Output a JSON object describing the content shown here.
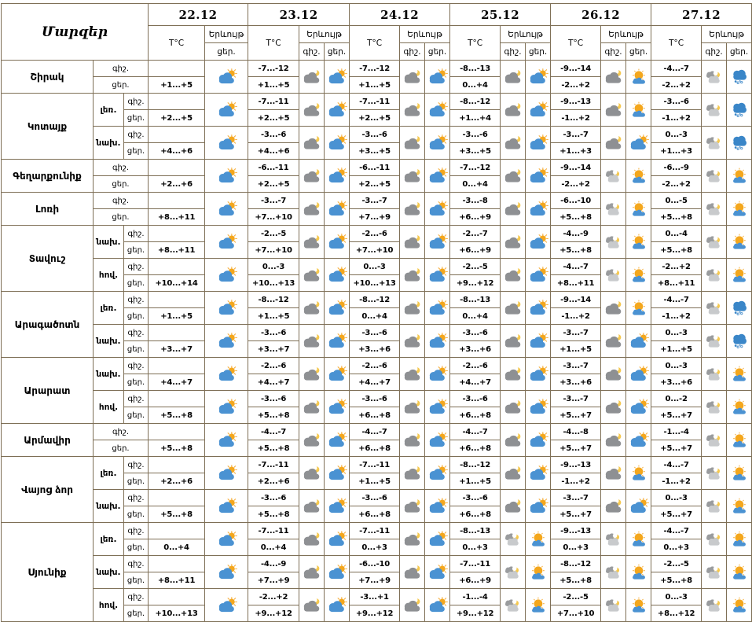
{
  "table": {
    "title": "Մարզեր",
    "dates": [
      "22.12",
      "23.12",
      "24.12",
      "25.12",
      "26.12",
      "27.12"
    ],
    "temp_label": "T°C",
    "phenomenon_label": "Երևույթ",
    "night_label": "գիշ.",
    "day_label": "ցեր."
  },
  "icons_legend": {
    "sun-cloud": "partly cloudy day",
    "moon-cloud": "cloudy night",
    "moon-clouds": "partly cloudy night",
    "sun-low-cloud": "mostly sunny with low cloud",
    "snow": "snow cloud"
  },
  "colors": {
    "border": "#7e6f56",
    "sun": "#f4a71d",
    "sun_rays": "#f6b44a",
    "cloud_blue": "#4a92d2",
    "snow_cloud_blue": "#3a86c8",
    "cloud_gray": "#8e9093",
    "cloud_light_gray": "#c8cacc",
    "moon_gold": "#f5c84e"
  },
  "regions": [
    {
      "name": "Շիրակ",
      "zones": [
        {
          "zone": "",
          "night": [
            "",
            "-7...-12",
            "-7...-12",
            "-8...-13",
            "-9...-14",
            "-4...-7"
          ],
          "day": [
            "+1...+5",
            "+1...+5",
            "+1...+5",
            "0...+4",
            "-2...+2",
            "-2...+2"
          ],
          "night_icons": [
            "",
            "moon-cloud",
            "moon-cloud",
            "moon-cloud",
            "moon-cloud",
            "moon-clouds"
          ],
          "day_icons": [
            "sun-cloud",
            "sun-cloud",
            "sun-cloud",
            "sun-cloud",
            "sun-low-cloud",
            "snow"
          ]
        }
      ]
    },
    {
      "name": "Կոտայք",
      "zones": [
        {
          "zone": "լեռ.",
          "night": [
            "",
            "-7...-11",
            "-7...-11",
            "-8...-12",
            "-9...-13",
            "-3...-6"
          ],
          "day": [
            "+2...+5",
            "+2...+5",
            "+2...+5",
            "+1...+4",
            "-1...+2",
            "-1...+2"
          ],
          "night_icons": [
            "",
            "moon-cloud",
            "moon-cloud",
            "moon-cloud",
            "moon-cloud",
            "moon-clouds"
          ],
          "day_icons": [
            "sun-cloud",
            "sun-cloud",
            "sun-cloud",
            "sun-cloud",
            "sun-low-cloud",
            "snow"
          ]
        },
        {
          "zone": "նախ.",
          "night": [
            "",
            "-3...-6",
            "-3...-6",
            "-3...-6",
            "-3...-7",
            "0...-3"
          ],
          "day": [
            "+4...+6",
            "+4...+6",
            "+3...+5",
            "+3...+5",
            "+1...+3",
            "+1...+3"
          ],
          "night_icons": [
            "",
            "moon-cloud",
            "moon-cloud",
            "moon-cloud",
            "moon-cloud",
            "moon-clouds"
          ],
          "day_icons": [
            "sun-cloud",
            "sun-cloud",
            "sun-cloud",
            "sun-cloud",
            "sun-cloud",
            "snow"
          ]
        }
      ]
    },
    {
      "name": "Գեղարքունիք",
      "zones": [
        {
          "zone": "",
          "night": [
            "",
            "-6...-11",
            "-6...-11",
            "-7...-12",
            "-9...-14",
            "-6...-9"
          ],
          "day": [
            "+2...+6",
            "+2...+5",
            "+2...+5",
            "0...+4",
            "-2...+2",
            "-2...+2"
          ],
          "night_icons": [
            "",
            "moon-cloud",
            "moon-cloud",
            "moon-cloud",
            "moon-clouds",
            "moon-clouds"
          ],
          "day_icons": [
            "sun-cloud",
            "sun-cloud",
            "sun-cloud",
            "sun-cloud",
            "sun-low-cloud",
            "sun-low-cloud"
          ]
        }
      ]
    },
    {
      "name": "Լոռի",
      "zones": [
        {
          "zone": "",
          "night": [
            "",
            "-3...-7",
            "-3...-7",
            "-3...-8",
            "-6...-10",
            "0...-5"
          ],
          "day": [
            "+8...+11",
            "+7...+10",
            "+7...+9",
            "+6...+9",
            "+5...+8",
            "+5...+8"
          ],
          "night_icons": [
            "",
            "moon-cloud",
            "moon-cloud",
            "moon-cloud",
            "moon-clouds",
            "moon-clouds"
          ],
          "day_icons": [
            "sun-cloud",
            "sun-cloud",
            "sun-cloud",
            "sun-cloud",
            "sun-low-cloud",
            "sun-low-cloud"
          ]
        }
      ]
    },
    {
      "name": "Տավուշ",
      "zones": [
        {
          "zone": "նախ.",
          "night": [
            "",
            "-2...-5",
            "-2...-6",
            "-2...-7",
            "-4...-9",
            "0...-4"
          ],
          "day": [
            "+8...+11",
            "+7...+10",
            "+7...+10",
            "+6...+9",
            "+5...+8",
            "+5...+8"
          ],
          "night_icons": [
            "",
            "moon-cloud",
            "moon-cloud",
            "moon-cloud",
            "moon-clouds",
            "moon-clouds"
          ],
          "day_icons": [
            "sun-cloud",
            "sun-cloud",
            "sun-cloud",
            "sun-cloud",
            "sun-low-cloud",
            "sun-low-cloud"
          ]
        },
        {
          "zone": "հով.",
          "night": [
            "",
            "0...-3",
            "0...-3",
            "-2...-5",
            "-4...-7",
            "-2...+2"
          ],
          "day": [
            "+10...+14",
            "+10...+13",
            "+10...+13",
            "+9...+12",
            "+8...+11",
            "+8...+11"
          ],
          "night_icons": [
            "",
            "moon-cloud",
            "moon-cloud",
            "moon-cloud",
            "moon-clouds",
            "moon-clouds"
          ],
          "day_icons": [
            "sun-cloud",
            "sun-cloud",
            "sun-cloud",
            "sun-cloud",
            "sun-low-cloud",
            "sun-low-cloud"
          ]
        }
      ]
    },
    {
      "name": "Արագածոտն",
      "zones": [
        {
          "zone": "լեռ.",
          "night": [
            "",
            "-8...-12",
            "-8...-12",
            "-8...-13",
            "-9...-14",
            "-4...-7"
          ],
          "day": [
            "+1...+5",
            "+1...+5",
            "0...+4",
            "0...+4",
            "-1...+2",
            "-1...+2"
          ],
          "night_icons": [
            "",
            "moon-cloud",
            "moon-cloud",
            "moon-cloud",
            "moon-cloud",
            "moon-clouds"
          ],
          "day_icons": [
            "sun-cloud",
            "sun-cloud",
            "sun-cloud",
            "sun-cloud",
            "sun-low-cloud",
            "snow"
          ]
        },
        {
          "zone": "նախ.",
          "night": [
            "",
            "-3...-6",
            "-3...-6",
            "-3...-6",
            "-3...-7",
            "0...-3"
          ],
          "day": [
            "+3...+7",
            "+3...+7",
            "+3...+6",
            "+3...+6",
            "+1...+5",
            "+1...+5"
          ],
          "night_icons": [
            "",
            "moon-cloud",
            "moon-cloud",
            "moon-cloud",
            "moon-cloud",
            "moon-clouds"
          ],
          "day_icons": [
            "sun-cloud",
            "sun-cloud",
            "sun-cloud",
            "sun-cloud",
            "sun-cloud",
            "snow"
          ]
        }
      ]
    },
    {
      "name": "Արարատ",
      "zones": [
        {
          "zone": "նախ.",
          "night": [
            "",
            "-2...-6",
            "-2...-6",
            "-2...-6",
            "-3...-7",
            "0...-3"
          ],
          "day": [
            "+4...+7",
            "+4...+7",
            "+4...+7",
            "+4...+7",
            "+3...+6",
            "+3...+6"
          ],
          "night_icons": [
            "",
            "moon-cloud",
            "moon-cloud",
            "moon-cloud",
            "moon-cloud",
            "moon-clouds"
          ],
          "day_icons": [
            "sun-cloud",
            "sun-cloud",
            "sun-cloud",
            "sun-cloud",
            "sun-cloud",
            "sun-low-cloud"
          ]
        },
        {
          "zone": "հով.",
          "night": [
            "",
            "-3...-6",
            "-3...-6",
            "-3...-6",
            "-3...-7",
            "0...-2"
          ],
          "day": [
            "+5...+8",
            "+5...+8",
            "+6...+8",
            "+6...+8",
            "+5...+7",
            "+5...+7"
          ],
          "night_icons": [
            "",
            "moon-cloud",
            "moon-cloud",
            "moon-cloud",
            "moon-cloud",
            "moon-clouds"
          ],
          "day_icons": [
            "sun-cloud",
            "sun-cloud",
            "sun-cloud",
            "sun-cloud",
            "sun-cloud",
            "sun-low-cloud"
          ]
        }
      ]
    },
    {
      "name": "Արմավիր",
      "zones": [
        {
          "zone": "",
          "night": [
            "",
            "-4...-7",
            "-4...-7",
            "-4...-7",
            "-4...-8",
            "-1...-4"
          ],
          "day": [
            "+5...+8",
            "+5...+8",
            "+6...+8",
            "+6...+8",
            "+5...+7",
            "+5...+7"
          ],
          "night_icons": [
            "",
            "moon-cloud",
            "moon-cloud",
            "moon-cloud",
            "moon-cloud",
            "moon-clouds"
          ],
          "day_icons": [
            "sun-cloud",
            "sun-cloud",
            "sun-cloud",
            "sun-cloud",
            "sun-cloud",
            "sun-low-cloud"
          ]
        }
      ]
    },
    {
      "name": "Վայոց ձոր",
      "zones": [
        {
          "zone": "լեռ.",
          "night": [
            "",
            "-7...-11",
            "-7...-11",
            "-8...-12",
            "-9...-13",
            "-4...-7"
          ],
          "day": [
            "+2...+6",
            "+2...+6",
            "+1...+5",
            "+1...+5",
            "-1...+2",
            "-1...+2"
          ],
          "night_icons": [
            "",
            "moon-cloud",
            "moon-cloud",
            "moon-cloud",
            "moon-cloud",
            "moon-clouds"
          ],
          "day_icons": [
            "sun-cloud",
            "sun-cloud",
            "sun-cloud",
            "sun-cloud",
            "sun-low-cloud",
            "sun-low-cloud"
          ]
        },
        {
          "zone": "նախ.",
          "night": [
            "",
            "-3...-6",
            "-3...-6",
            "-3...-6",
            "-3...-7",
            "0...-3"
          ],
          "day": [
            "+5...+8",
            "+5...+8",
            "+6...+8",
            "+6...+8",
            "+5...+7",
            "+5...+7"
          ],
          "night_icons": [
            "",
            "moon-cloud",
            "moon-cloud",
            "moon-cloud",
            "moon-cloud",
            "moon-clouds"
          ],
          "day_icons": [
            "sun-cloud",
            "sun-cloud",
            "sun-cloud",
            "sun-cloud",
            "sun-cloud",
            "sun-low-cloud"
          ]
        }
      ]
    },
    {
      "name": "Սյունիք",
      "zones": [
        {
          "zone": "լեռ.",
          "night": [
            "",
            "-7...-11",
            "-7...-11",
            "-8...-13",
            "-9...-13",
            "-4...-7"
          ],
          "day": [
            "0...+4",
            "0...+4",
            "0...+3",
            "0...+3",
            "0...+3",
            "0...+3"
          ],
          "night_icons": [
            "",
            "moon-cloud",
            "moon-cloud",
            "moon-clouds",
            "moon-clouds",
            "moon-clouds"
          ],
          "day_icons": [
            "sun-cloud",
            "sun-cloud",
            "sun-cloud",
            "sun-low-cloud",
            "sun-low-cloud",
            "sun-low-cloud"
          ]
        },
        {
          "zone": "նախ.",
          "night": [
            "",
            "-4...-9",
            "-6...-10",
            "-7...-11",
            "-8...-12",
            "-2...-5"
          ],
          "day": [
            "+8...+11",
            "+7...+9",
            "+7...+9",
            "+6...+9",
            "+5...+8",
            "+5...+8"
          ],
          "night_icons": [
            "",
            "moon-cloud",
            "moon-cloud",
            "moon-clouds",
            "moon-clouds",
            "moon-clouds"
          ],
          "day_icons": [
            "sun-cloud",
            "sun-cloud",
            "sun-cloud",
            "sun-low-cloud",
            "sun-low-cloud",
            "sun-low-cloud"
          ]
        },
        {
          "zone": "հով.",
          "night": [
            "",
            "-2...+2",
            "-3...+1",
            "-1...-4",
            "-2...-5",
            "0...-3"
          ],
          "day": [
            "+10...+13",
            "+9...+12",
            "+9...+12",
            "+9...+12",
            "+7...+10",
            "+8...+12"
          ],
          "night_icons": [
            "",
            "moon-cloud",
            "moon-cloud",
            "moon-clouds",
            "moon-clouds",
            "moon-clouds"
          ],
          "day_icons": [
            "sun-cloud",
            "sun-cloud",
            "sun-cloud",
            "sun-low-cloud",
            "sun-low-cloud",
            "sun-low-cloud"
          ]
        }
      ]
    }
  ]
}
